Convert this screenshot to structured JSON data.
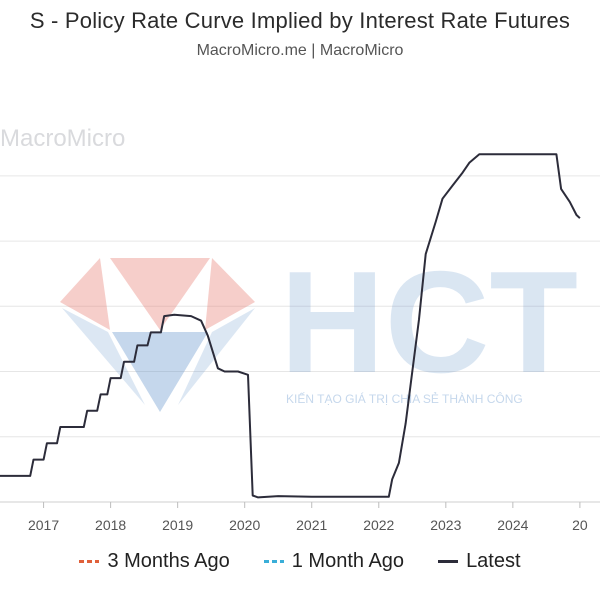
{
  "header": {
    "title": "S - Policy Rate Curve Implied by Interest Rate Futures",
    "subtitle": "MacroMicro.me | MacroMicro"
  },
  "watermarks": {
    "macromicro": "MacroMicro",
    "hct": "HCT",
    "hct_tagline": "KIẾN TẠO GIÁ TRỊ CHIA SẺ THÀNH CÔNG"
  },
  "legend": [
    {
      "label": "3 Months Ago",
      "color": "#e0603a",
      "style": "dashed"
    },
    {
      "label": "1 Month Ago",
      "color": "#3aaed8",
      "style": "dashed"
    },
    {
      "label": "Latest",
      "color": "#2c2c3a",
      "style": "solid"
    }
  ],
  "chart_data": {
    "type": "line",
    "xlabel": "",
    "ylabel": "",
    "x_ticks": [
      "2017",
      "2018",
      "2019",
      "2020",
      "2021",
      "2022",
      "2023",
      "2024",
      "20"
    ],
    "xlim": [
      2016.35,
      2025.3
    ],
    "ylim": [
      0,
      6.5
    ],
    "grid": true,
    "legend_position": "bottom",
    "series": [
      {
        "name": "Latest",
        "color": "#2c2c3a",
        "points": [
          [
            2016.35,
            0.4
          ],
          [
            2016.8,
            0.4
          ],
          [
            2016.85,
            0.65
          ],
          [
            2017.0,
            0.65
          ],
          [
            2017.05,
            0.9
          ],
          [
            2017.2,
            0.9
          ],
          [
            2017.25,
            1.15
          ],
          [
            2017.6,
            1.15
          ],
          [
            2017.65,
            1.4
          ],
          [
            2017.8,
            1.4
          ],
          [
            2017.85,
            1.65
          ],
          [
            2017.95,
            1.65
          ],
          [
            2018.0,
            1.9
          ],
          [
            2018.15,
            1.9
          ],
          [
            2018.2,
            2.15
          ],
          [
            2018.35,
            2.15
          ],
          [
            2018.4,
            2.4
          ],
          [
            2018.55,
            2.4
          ],
          [
            2018.6,
            2.6
          ],
          [
            2018.75,
            2.6
          ],
          [
            2018.8,
            2.85
          ],
          [
            2018.95,
            2.87
          ],
          [
            2019.2,
            2.85
          ],
          [
            2019.35,
            2.78
          ],
          [
            2019.45,
            2.55
          ],
          [
            2019.6,
            2.05
          ],
          [
            2019.7,
            2.0
          ],
          [
            2019.9,
            2.0
          ],
          [
            2020.05,
            1.95
          ],
          [
            2020.12,
            0.1
          ],
          [
            2020.2,
            0.07
          ],
          [
            2020.5,
            0.09
          ],
          [
            2021.0,
            0.08
          ],
          [
            2021.5,
            0.08
          ],
          [
            2022.0,
            0.08
          ],
          [
            2022.15,
            0.08
          ],
          [
            2022.2,
            0.35
          ],
          [
            2022.3,
            0.6
          ],
          [
            2022.4,
            1.2
          ],
          [
            2022.5,
            2.0
          ],
          [
            2022.6,
            2.8
          ],
          [
            2022.7,
            3.8
          ],
          [
            2022.85,
            4.3
          ],
          [
            2022.95,
            4.65
          ],
          [
            2023.1,
            4.85
          ],
          [
            2023.25,
            5.05
          ],
          [
            2023.35,
            5.2
          ],
          [
            2023.5,
            5.33
          ],
          [
            2023.7,
            5.33
          ],
          [
            2024.0,
            5.33
          ],
          [
            2024.3,
            5.33
          ],
          [
            2024.65,
            5.33
          ],
          [
            2024.72,
            4.8
          ],
          [
            2024.85,
            4.6
          ],
          [
            2024.95,
            4.4
          ],
          [
            2025.0,
            4.35
          ]
        ]
      }
    ]
  }
}
